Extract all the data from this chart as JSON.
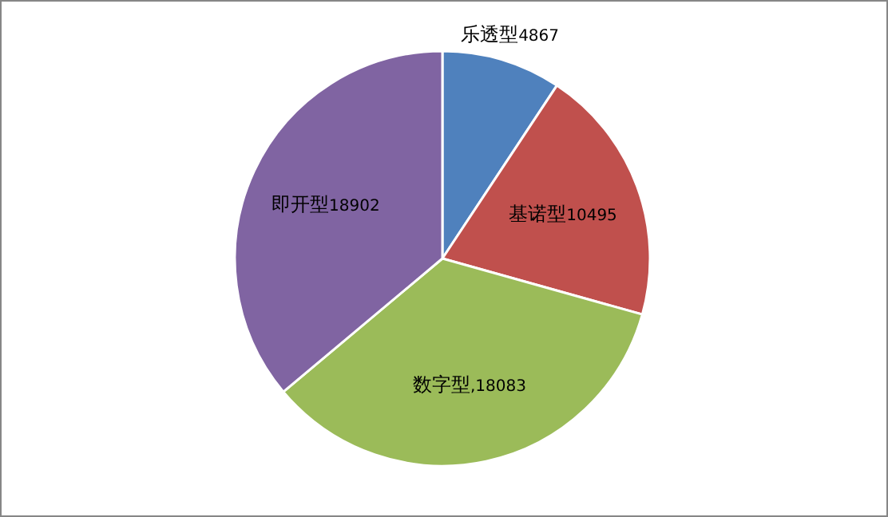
{
  "chart_data": {
    "type": "pie",
    "categories": [
      "乐透型",
      "基诺型",
      "数字型",
      "即开型"
    ],
    "values": [
      4867,
      10495,
      18083,
      18902
    ],
    "value_labels": [
      "4867",
      "10495",
      ",18083",
      "18902"
    ],
    "colors": [
      "#4f81bd",
      "#c0504d",
      "#9bbb59",
      "#8064a2"
    ]
  }
}
